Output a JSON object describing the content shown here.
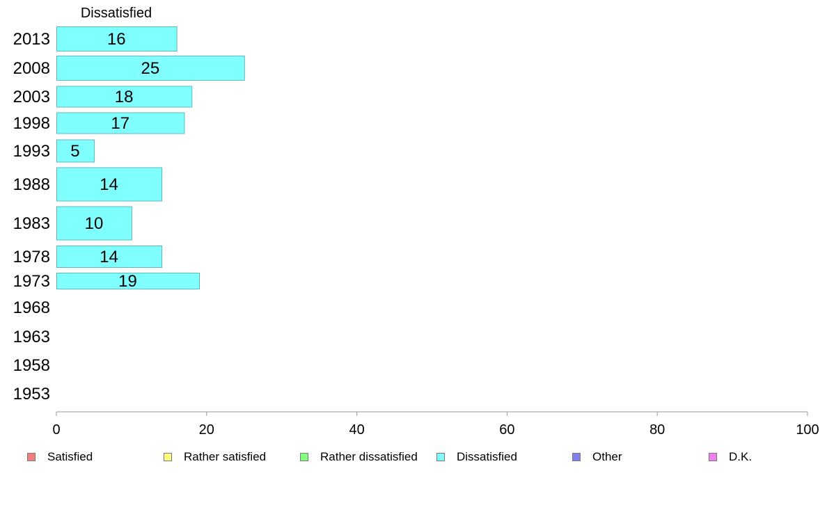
{
  "chart_data": {
    "type": "bar",
    "orientation": "horizontal",
    "title": "Dissatisfied",
    "categories": [
      "2013",
      "2008",
      "2003",
      "1998",
      "1993",
      "1988",
      "1983",
      "1978",
      "1973",
      "1968",
      "1963",
      "1958",
      "1953"
    ],
    "values": [
      16,
      25,
      18,
      17,
      5,
      14,
      10,
      14,
      19,
      null,
      null,
      null,
      null
    ],
    "data_labels": [
      "16",
      "25",
      "18",
      "17",
      "5",
      "14",
      "10",
      "14",
      "19",
      "",
      "",
      "",
      ""
    ],
    "bar_color": "#80ffff",
    "bar_border_color": "#5fb8b8",
    "xlim": [
      0,
      100
    ],
    "xticks": [
      0,
      20,
      40,
      60,
      80,
      100
    ],
    "xtick_labels": [
      "0",
      "20",
      "40",
      "60",
      "80",
      "100"
    ],
    "legend_position": "bottom",
    "legend": [
      {
        "label": "Satisfied",
        "color": "#f08080"
      },
      {
        "label": "Rather satisfied",
        "color": "#ffff80"
      },
      {
        "label": "Rather dissatisfied",
        "color": "#80ff80"
      },
      {
        "label": "Dissatisfied",
        "color": "#80ffff"
      },
      {
        "label": "Other",
        "color": "#8080f0"
      },
      {
        "label": "D.K.",
        "color": "#f080f0"
      }
    ]
  }
}
